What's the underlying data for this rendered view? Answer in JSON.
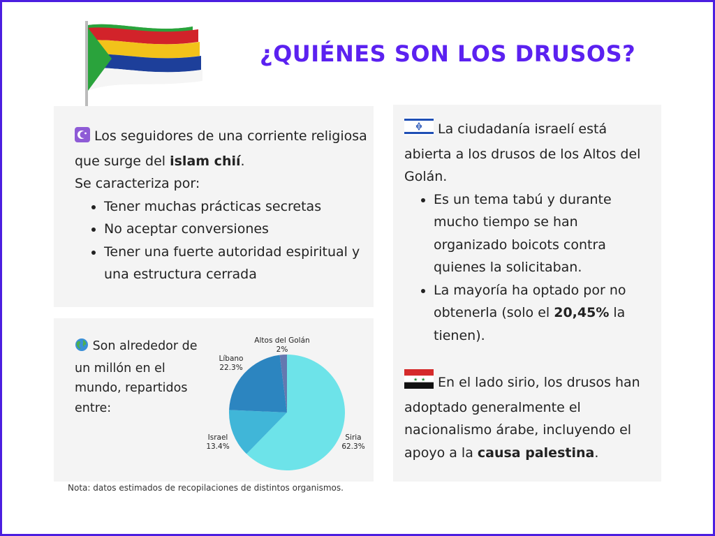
{
  "title": "¿QUIÉNES SON LOS DRUSOS?",
  "colors": {
    "accent": "#5b21f0",
    "border": "#4b1ee0",
    "panel": "#f4f4f4"
  },
  "left_panel": {
    "intro_icon": "star-and-crescent-icon",
    "intro_1": " Los seguidores de una corriente religiosa que surge del ",
    "intro_bold": "islam chií",
    "intro_2": ".",
    "caracteriza": "Se caracteriza por:",
    "bullets": [
      "Tener muchas prácticas secretas",
      "No aceptar conversiones",
      "Tener una fuerte autoridad espiritual y una estructura cerrada"
    ]
  },
  "chart_panel": {
    "icon": "globe-icon",
    "text": " Son alrededor de un millón en el mundo, repartidos entre:"
  },
  "right_panel": {
    "israel_flag_icon": "israel-flag-icon",
    "israel_text": " La ciudadanía israelí está abierta a los drusos de los Altos del Golán.",
    "bullet_1": "Es un tema tabú y durante mucho tiempo se han organizado boicots contra quienes la solicitaban.",
    "bullet_2_pre": "La mayoría ha optado por no obtenerla (solo el ",
    "bullet_2_bold": "20,45%",
    "bullet_2_post": " la tienen).",
    "syria_flag_icon": "syria-flag-icon",
    "syria_text": " En el lado sirio, los drusos han adoptado generalmente el nacionalismo árabe, incluyendo el apoyo a la ",
    "syria_bold": "causa palestina",
    "syria_end": "."
  },
  "note": "Nota: datos estimados de recopilaciones de distintos organismos.",
  "chart_data": {
    "type": "pie",
    "title": "",
    "categories": [
      "Siria",
      "Israel",
      "Líbano",
      "Altos del Golán"
    ],
    "values": [
      62.3,
      13.4,
      22.3,
      2
    ],
    "labels": [
      "62.3%",
      "13.4%",
      "22.3%",
      "2%"
    ],
    "colors": [
      "#6de3e9",
      "#40b6d8",
      "#2c85c0",
      "#6478b0"
    ],
    "legend": "none"
  }
}
